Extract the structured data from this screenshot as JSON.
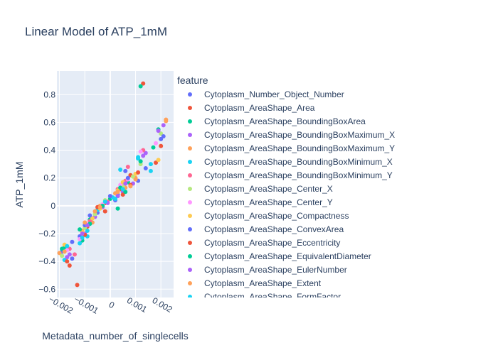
{
  "chart_data": {
    "type": "scatter",
    "title": "Linear Model of ATP_1mM",
    "xlabel": "Metadata_number_of_singlecells",
    "ylabel": "ATP_1mM",
    "xlim": [
      -0.0021,
      0.0025
    ],
    "ylim": [
      -0.66,
      0.97
    ],
    "x_ticks": [
      -0.002,
      -0.001,
      0,
      0.001,
      0.002
    ],
    "x_tick_labels": [
      "−0.002",
      "−0.001",
      "0",
      "0.001",
      "0.002"
    ],
    "y_ticks": [
      0.8,
      0.6,
      0.4,
      0.2,
      0,
      -0.2,
      -0.4,
      -0.6
    ],
    "y_tick_labels": [
      "0.8",
      "0.6",
      "0.4",
      "0.2",
      "0",
      "−0.2",
      "−0.4",
      "−0.6"
    ],
    "grid": true,
    "legend_title": "feature",
    "legend_placement": "right",
    "series": [
      {
        "name": "Cytoplasm_Number_Object_Number",
        "color": "#636efa",
        "points": [
          [
            -0.0019,
            -0.33
          ],
          [
            -0.0012,
            -0.22
          ],
          [
            -0.0005,
            -0.05
          ],
          [
            0.0003,
            0.08
          ],
          [
            0.0011,
            0.18
          ],
          [
            0.002,
            0.48
          ],
          [
            -0.0015,
            -0.38
          ],
          [
            0.0006,
            0.25
          ]
        ]
      },
      {
        "name": "Cytoplasm_AreaShape_Area",
        "color": "#EF553B",
        "points": [
          [
            -0.0016,
            -0.43
          ],
          [
            -0.0009,
            -0.15
          ],
          [
            -0.0002,
            0.02
          ],
          [
            0.0004,
            0.12
          ],
          [
            0.0013,
            0.88
          ],
          [
            0.0018,
            0.31
          ],
          [
            -0.0013,
            -0.57
          ],
          [
            0.0008,
            0.22
          ]
        ]
      },
      {
        "name": "Cytoplasm_AreaShape_BoundingBoxArea",
        "color": "#00cc96",
        "points": [
          [
            -0.0018,
            -0.3
          ],
          [
            -0.0008,
            -0.1
          ],
          [
            0.0,
            0.05
          ],
          [
            0.0007,
            0.17
          ],
          [
            0.0012,
            0.86
          ],
          [
            0.0019,
            0.55
          ],
          [
            -0.0011,
            -0.25
          ],
          [
            0.0003,
            -0.02
          ]
        ]
      },
      {
        "name": "Cytoplasm_AreaShape_BoundingBoxMaximum_X",
        "color": "#ab63fa",
        "points": [
          [
            -0.0017,
            -0.37
          ],
          [
            -0.001,
            -0.2
          ],
          [
            -0.0003,
            -0.01
          ],
          [
            0.0005,
            0.1
          ],
          [
            0.0014,
            0.38
          ],
          [
            0.0021,
            0.58
          ],
          [
            -0.0006,
            -0.08
          ],
          [
            0.0009,
            0.16
          ]
        ]
      },
      {
        "name": "Cytoplasm_AreaShape_BoundingBoxMaximum_Y",
        "color": "#FFA15A",
        "points": [
          [
            -0.002,
            -0.34
          ],
          [
            -0.0011,
            -0.18
          ],
          [
            -0.0004,
            0.0
          ],
          [
            0.0002,
            0.09
          ],
          [
            0.001,
            0.2
          ],
          [
            0.0022,
            0.62
          ],
          [
            -0.0007,
            -0.12
          ],
          [
            0.0006,
            0.13
          ]
        ]
      },
      {
        "name": "Cytoplasm_AreaShape_BoundingBoxMinimum_X",
        "color": "#19d3f3",
        "points": [
          [
            -0.0018,
            -0.39
          ],
          [
            -0.0012,
            -0.27
          ],
          [
            -0.0005,
            -0.03
          ],
          [
            0.0004,
            0.26
          ],
          [
            0.0011,
            0.34
          ],
          [
            0.0016,
            0.25
          ],
          [
            -0.0009,
            -0.22
          ],
          [
            0.0001,
            0.06
          ]
        ]
      },
      {
        "name": "Cytoplasm_AreaShape_BoundingBoxMinimum_Y",
        "color": "#FF6692",
        "points": [
          [
            -0.0016,
            -0.31
          ],
          [
            -0.0008,
            -0.11
          ],
          [
            -0.0001,
            0.03
          ],
          [
            0.0006,
            0.18
          ],
          [
            0.0013,
            0.4
          ],
          [
            0.0007,
            0.28
          ],
          [
            -0.0014,
            -0.35
          ],
          [
            0.0003,
            0.12
          ]
        ]
      },
      {
        "name": "Cytoplasm_AreaShape_Center_X",
        "color": "#B6E880",
        "points": [
          [
            -0.0019,
            -0.36
          ],
          [
            -0.001,
            -0.16
          ],
          [
            -0.0002,
            0.04
          ],
          [
            0.0005,
            0.14
          ],
          [
            0.0012,
            0.3
          ],
          [
            0.002,
            0.52
          ],
          [
            -0.0006,
            -0.06
          ],
          [
            0.0009,
            0.21
          ]
        ]
      },
      {
        "name": "Cytoplasm_AreaShape_Center_Y",
        "color": "#FF97FF",
        "points": [
          [
            -0.0017,
            -0.32
          ],
          [
            -0.0009,
            -0.13
          ],
          [
            -0.0003,
            0.01
          ],
          [
            0.0004,
            0.15
          ],
          [
            0.0012,
            0.39
          ],
          [
            0.0018,
            0.45
          ],
          [
            -0.0012,
            -0.24
          ],
          [
            0.0007,
            0.19
          ]
        ]
      },
      {
        "name": "Cytoplasm_AreaShape_Compactness",
        "color": "#FECB52",
        "points": [
          [
            -0.0018,
            -0.28
          ],
          [
            -0.0011,
            -0.19
          ],
          [
            -0.0004,
            -0.02
          ],
          [
            0.0003,
            0.11
          ],
          [
            0.001,
            0.23
          ],
          [
            0.0019,
            0.33
          ],
          [
            -0.0007,
            -0.09
          ],
          [
            0.0005,
            0.17
          ]
        ]
      },
      {
        "name": "Cytoplasm_AreaShape_ConvexArea",
        "color": "#636efa",
        "points": [
          [
            -0.0015,
            -0.26
          ],
          [
            -0.0008,
            -0.07
          ],
          [
            0.0,
            0.07
          ],
          [
            0.0007,
            0.2
          ],
          [
            0.0014,
            0.27
          ],
          [
            0.0021,
            0.5
          ],
          [
            -0.001,
            -0.14
          ],
          [
            0.0002,
            0.04
          ]
        ]
      },
      {
        "name": "Cytoplasm_AreaShape_Eccentricity",
        "color": "#EF553B",
        "points": [
          [
            -0.0017,
            -0.4
          ],
          [
            -0.001,
            -0.21
          ],
          [
            -0.0002,
            -0.04
          ],
          [
            0.0005,
            0.08
          ],
          [
            0.0011,
            0.24
          ],
          [
            0.002,
            0.43
          ],
          [
            -0.0005,
            -0.01
          ],
          [
            0.0008,
            0.15
          ]
        ]
      },
      {
        "name": "Cytoplasm_AreaShape_EquivalentDiameter",
        "color": "#00cc96",
        "points": [
          [
            -0.0019,
            -0.31
          ],
          [
            -0.0012,
            -0.17
          ],
          [
            -0.0003,
            0.0
          ],
          [
            0.0004,
            0.13
          ],
          [
            0.0012,
            0.32
          ],
          [
            0.0017,
            0.42
          ],
          [
            -0.0008,
            -0.13
          ],
          [
            0.0006,
            0.1
          ]
        ]
      },
      {
        "name": "Cytoplasm_AreaShape_EulerNumber",
        "color": "#ab63fa",
        "points": [
          [
            -0.0016,
            -0.35
          ],
          [
            -0.0009,
            -0.14
          ],
          [
            -0.0001,
            0.02
          ],
          [
            0.0006,
            0.16
          ],
          [
            0.0013,
            0.36
          ],
          [
            0.0019,
            0.54
          ],
          [
            -0.0011,
            -0.2
          ],
          [
            0.0003,
            0.07
          ]
        ]
      },
      {
        "name": "Cytoplasm_AreaShape_Extent",
        "color": "#FFA15A",
        "points": [
          [
            -0.0018,
            -0.33
          ],
          [
            -0.001,
            -0.12
          ],
          [
            -0.0004,
            -0.01
          ],
          [
            0.0003,
            0.1
          ],
          [
            0.001,
            0.19
          ],
          [
            0.0022,
            0.61
          ],
          [
            -0.0006,
            -0.04
          ],
          [
            0.0008,
            0.14
          ]
        ]
      },
      {
        "name": "Cytoplasm_AreaShape_FormFactor",
        "color": "#19d3f3",
        "points": [
          [
            -0.0017,
            -0.29
          ],
          [
            -0.0011,
            -0.23
          ],
          [
            -0.0002,
            0.03
          ],
          [
            0.0005,
            0.12
          ],
          [
            0.0011,
            0.35
          ],
          [
            0.0016,
            0.3
          ],
          [
            -0.0009,
            -0.18
          ],
          [
            0.0002,
            0.05
          ]
        ]
      }
    ]
  }
}
